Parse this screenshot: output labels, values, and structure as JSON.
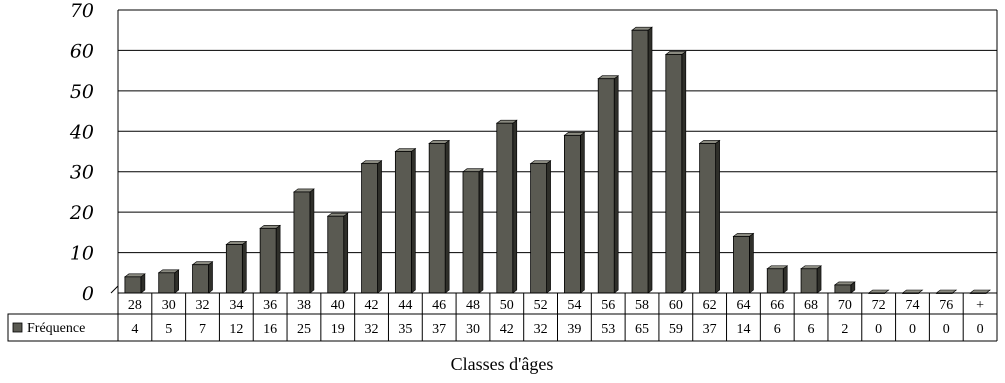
{
  "chart_data": {
    "type": "bar",
    "title": "",
    "xlabel": "Classes d'âges",
    "ylabel": "",
    "ylim": [
      0,
      70
    ],
    "yticks": [
      0,
      10,
      20,
      30,
      40,
      50,
      60,
      70
    ],
    "grid": true,
    "legend_position": "left of data table",
    "categories": [
      "28",
      "30",
      "32",
      "34",
      "36",
      "38",
      "40",
      "42",
      "44",
      "46",
      "48",
      "50",
      "52",
      "54",
      "56",
      "58",
      "60",
      "62",
      "64",
      "66",
      "68",
      "70",
      "72",
      "74",
      "76",
      "+"
    ],
    "series": [
      {
        "name": "Fréquence",
        "values": [
          4,
          5,
          7,
          12,
          16,
          25,
          19,
          32,
          35,
          37,
          30,
          42,
          32,
          39,
          53,
          65,
          59,
          37,
          14,
          6,
          6,
          2,
          0,
          0,
          0,
          0
        ]
      }
    ],
    "colors": {
      "bar_front": "#5a5a52",
      "bar_side": "#2f2f2a",
      "bar_top": "#8a8a80"
    }
  }
}
